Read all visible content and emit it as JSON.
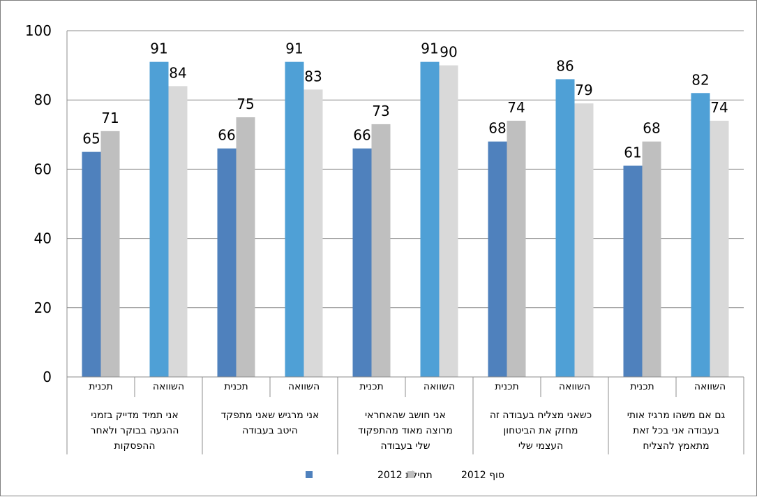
{
  "chart_data": {
    "type": "bar",
    "title": "",
    "xlabel": "",
    "ylabel": "",
    "ylim": [
      0,
      100
    ],
    "yticks": [
      0,
      20,
      40,
      60,
      80,
      100
    ],
    "grid": true,
    "legend_position": "bottom",
    "series": [
      {
        "name": "תחילת 2012",
        "color": "#4f81bd",
        "color_comparison": "#4fa0d6"
      },
      {
        "name": "סוף 2012",
        "color": "#bfbfbf",
        "color_comparison": "#d9d9d9"
      }
    ],
    "groups": [
      {
        "label_lines": [
          "אני תמיד מדייק בזמני",
          "ההגעה בבוקר ולאחר",
          "ההפסקות"
        ],
        "subgroups": [
          {
            "label": "תכנית",
            "values": [
              65,
              71
            ]
          },
          {
            "label": "השוואה",
            "values": [
              91,
              84
            ]
          }
        ]
      },
      {
        "label_lines": [
          "אני מרגיש שאני מתפקד",
          "היטב בעבודה"
        ],
        "subgroups": [
          {
            "label": "תכנית",
            "values": [
              66,
              75
            ]
          },
          {
            "label": "השוואה",
            "values": [
              91,
              83
            ]
          }
        ]
      },
      {
        "label_lines": [
          "אני חושב שהאחראי",
          "מרוצה מאוד מהתפקוד",
          "שלי בעבודה"
        ],
        "subgroups": [
          {
            "label": "תכנית",
            "values": [
              66,
              73
            ]
          },
          {
            "label": "השוואה",
            "values": [
              91,
              90
            ]
          }
        ]
      },
      {
        "label_lines": [
          "כשאני מצליח בעבודה זה",
          "מחזק את הביטחון",
          "העצמי שלי"
        ],
        "subgroups": [
          {
            "label": "תכנית",
            "values": [
              68,
              74
            ]
          },
          {
            "label": "השוואה",
            "values": [
              86,
              79
            ]
          }
        ]
      },
      {
        "label_lines": [
          "גם אם משהו מרגיז אותי",
          "בעבודה אני בכל זאת",
          "מתאמץ להצליח"
        ],
        "subgroups": [
          {
            "label": "תכנית",
            "values": [
              61,
              68
            ]
          },
          {
            "label": "השוואה",
            "values": [
              82,
              74
            ]
          }
        ]
      }
    ]
  }
}
